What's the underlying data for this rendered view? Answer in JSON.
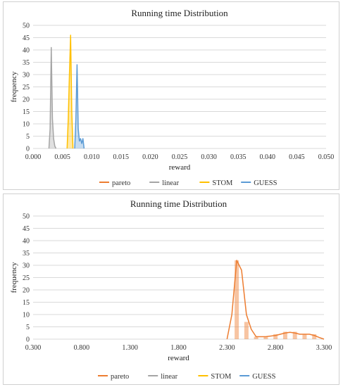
{
  "chart_data": [
    {
      "type": "area",
      "title": "Running time Distribution",
      "xlabel": "reward",
      "ylabel": "frequency",
      "xlim": [
        0.0,
        0.05
      ],
      "ylim": [
        0,
        50
      ],
      "x_ticks": [
        "0.000",
        "0.005",
        "0.010",
        "0.015",
        "0.020",
        "0.025",
        "0.030",
        "0.035",
        "0.040",
        "0.045",
        "0.050"
      ],
      "y_ticks": [
        "0",
        "5",
        "10",
        "15",
        "20",
        "25",
        "30",
        "35",
        "40",
        "45",
        "50"
      ],
      "grid": true,
      "legend_position": "bottom",
      "series": [
        {
          "name": "pareto",
          "color": "#ED7D31",
          "points": []
        },
        {
          "name": "linear",
          "color": "#A5A5A5",
          "points": [
            [
              0.0027,
              0
            ],
            [
              0.0029,
              8
            ],
            [
              0.0031,
              41
            ],
            [
              0.0033,
              12
            ],
            [
              0.0035,
              4
            ],
            [
              0.0037,
              1
            ],
            [
              0.0039,
              0
            ]
          ]
        },
        {
          "name": "STOM",
          "color": "#FFC000",
          "points": [
            [
              0.0058,
              0
            ],
            [
              0.006,
              12
            ],
            [
              0.0062,
              30
            ],
            [
              0.0064,
              46
            ],
            [
              0.0066,
              15
            ],
            [
              0.0068,
              0
            ]
          ]
        },
        {
          "name": "GUESS",
          "color": "#5B9BD5",
          "points": [
            [
              0.0071,
              0
            ],
            [
              0.0073,
              12
            ],
            [
              0.0075,
              34
            ],
            [
              0.0077,
              8
            ],
            [
              0.0079,
              3
            ],
            [
              0.0081,
              4
            ],
            [
              0.0083,
              2
            ],
            [
              0.0085,
              4
            ],
            [
              0.0087,
              0
            ]
          ]
        }
      ]
    },
    {
      "type": "area",
      "title": "Running time Distribution",
      "xlabel": "reward",
      "ylabel": "frequency",
      "xlim": [
        0.3,
        3.3
      ],
      "ylim": [
        0,
        50
      ],
      "x_ticks": [
        "0.300",
        "0.800",
        "1.300",
        "1.800",
        "2.300",
        "2.800",
        "3.300"
      ],
      "y_ticks": [
        "0",
        "5",
        "10",
        "15",
        "20",
        "25",
        "30",
        "35",
        "40",
        "45",
        "50"
      ],
      "grid": true,
      "legend_position": "bottom",
      "series": [
        {
          "name": "pareto",
          "color": "#ED7D31",
          "points": [
            [
              2.3,
              0
            ],
            [
              2.35,
              10
            ],
            [
              2.4,
              32
            ],
            [
              2.45,
              28
            ],
            [
              2.5,
              10
            ],
            [
              2.55,
              4
            ],
            [
              2.6,
              1
            ],
            [
              2.7,
              1
            ],
            [
              2.8,
              1.5
            ],
            [
              2.9,
              2.5
            ],
            [
              2.95,
              2.8
            ],
            [
              3.0,
              2.5
            ],
            [
              3.05,
              2
            ],
            [
              3.1,
              2
            ],
            [
              3.15,
              2
            ],
            [
              3.2,
              1.5
            ],
            [
              3.25,
              0.7
            ],
            [
              3.3,
              0
            ]
          ],
          "bars": [
            [
              2.4,
              32
            ],
            [
              2.5,
              7
            ],
            [
              2.6,
              1
            ],
            [
              2.7,
              1
            ],
            [
              2.8,
              2
            ],
            [
              2.9,
              3
            ],
            [
              3.0,
              3
            ],
            [
              3.1,
              2
            ],
            [
              3.2,
              2
            ]
          ]
        },
        {
          "name": "linear",
          "color": "#A5A5A5",
          "points": []
        },
        {
          "name": "STOM",
          "color": "#FFC000",
          "points": []
        },
        {
          "name": "GUESS",
          "color": "#5B9BD5",
          "points": []
        }
      ]
    }
  ]
}
